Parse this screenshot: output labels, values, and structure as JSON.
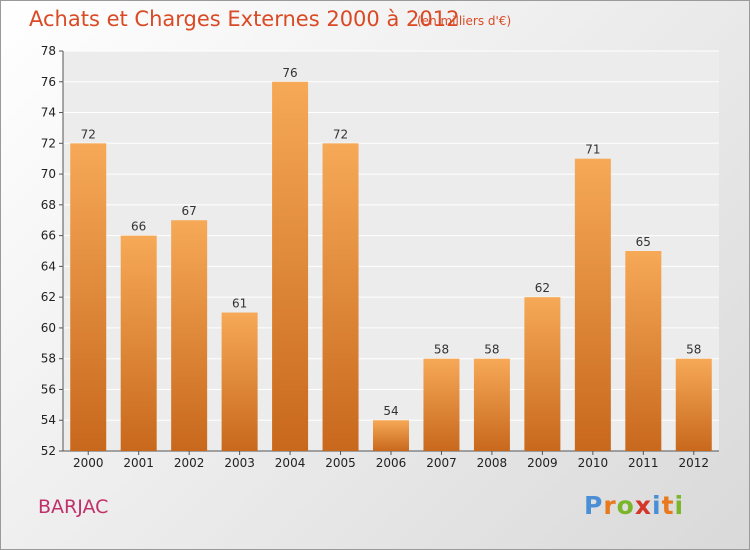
{
  "chart_data": {
    "type": "bar",
    "title": "Achats et Charges Externes 2000 à 2012",
    "subtitle": "(en milliers d'€)",
    "categories": [
      "2000",
      "2001",
      "2002",
      "2003",
      "2004",
      "2005",
      "2006",
      "2007",
      "2008",
      "2009",
      "2010",
      "2011",
      "2012"
    ],
    "values": [
      72,
      66,
      67,
      61,
      76,
      72,
      54,
      58,
      58,
      62,
      71,
      65,
      58
    ],
    "ylim": [
      52,
      78
    ],
    "yticks": [
      52,
      54,
      56,
      58,
      60,
      62,
      64,
      66,
      68,
      70,
      72,
      74,
      76,
      78
    ],
    "grid": true,
    "legend": "none",
    "bar_color_light": "#f6a957",
    "bar_color_dark": "#c8681d"
  },
  "labels": {
    "commune": "BARJAC",
    "logo": [
      "P",
      "r",
      "o",
      "x",
      "i",
      "t",
      "i"
    ],
    "logo_colors": [
      "#4a8fd6",
      "#e8791f",
      "#7bb529",
      "#d6352a",
      "#4a8fd6",
      "#e8791f",
      "#7bb529"
    ]
  }
}
